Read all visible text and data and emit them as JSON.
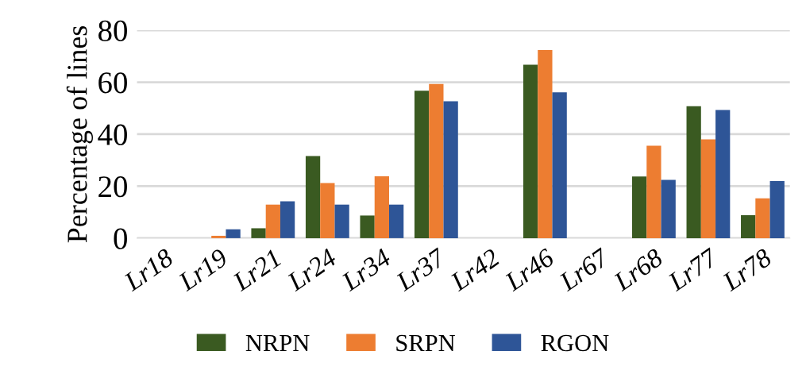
{
  "chart_data": {
    "type": "bar",
    "ylabel": "Percentage of lines",
    "categories": [
      "Lr18",
      "Lr19",
      "Lr21",
      "Lr24",
      "Lr34",
      "Lr37",
      "Lr42",
      "Lr46",
      "Lr67",
      "Lr68",
      "Lr77",
      "Lr78"
    ],
    "series": [
      {
        "name": "NRPN",
        "color": "#3a5a21",
        "values": [
          0,
          0,
          3.8,
          31.6,
          8.7,
          56.7,
          0,
          66.7,
          0,
          23.7,
          50.8,
          8.8
        ]
      },
      {
        "name": "SRPN",
        "color": "#ed7d31",
        "values": [
          0,
          0.9,
          12.9,
          21.2,
          23.8,
          59.3,
          0,
          72.4,
          0,
          35.6,
          38,
          15.3
        ]
      },
      {
        "name": "RGON",
        "color": "#2e5597",
        "values": [
          0,
          3.4,
          14.2,
          12.9,
          12.9,
          52.7,
          0,
          56.1,
          0,
          22.4,
          49.3,
          22
        ]
      }
    ],
    "ylim": [
      0,
      80
    ],
    "yticks": [
      0,
      20,
      40,
      60,
      80
    ],
    "grid": "y",
    "legend": "bottom"
  }
}
